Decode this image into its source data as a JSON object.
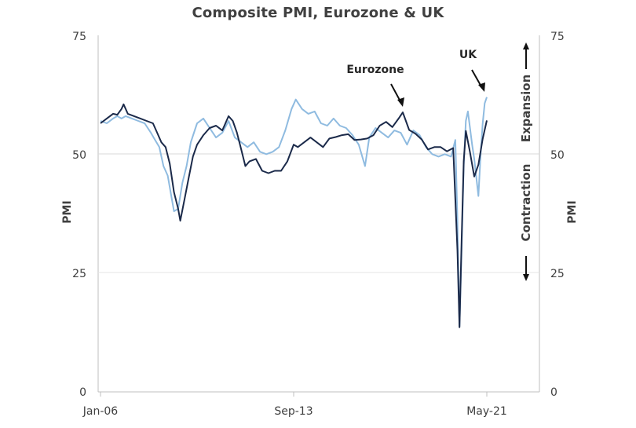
{
  "chart_data": {
    "type": "line",
    "title": "Composite PMI, Eurozone & UK",
    "ylabel_left": "PMI",
    "ylabel_right": "PMI",
    "ylim": [
      0,
      75
    ],
    "yticks": [
      0,
      25,
      50,
      75
    ],
    "x_tick_labels": [
      "Jan-06",
      "Sep-13",
      "May-21"
    ],
    "x_tick_dates": [
      "2006-01",
      "2013-09",
      "2021-05"
    ],
    "xlim": [
      "2006-01",
      "2023-02"
    ],
    "grid": "horizontal line at 50",
    "annotations": {
      "eurozone_label": "Eurozone",
      "uk_label": "UK",
      "expansion": "Expansion",
      "contraction": "Contraction"
    },
    "colors": {
      "eurozone": "#1b2a4a",
      "uk": "#8fbbe0",
      "axis": "#bfbfbf",
      "grid": "#d9d9d9"
    },
    "series": [
      {
        "name": "Eurozone",
        "points": [
          [
            "2006-01",
            56.5
          ],
          [
            "2006-04",
            57.5
          ],
          [
            "2006-07",
            58.5
          ],
          [
            "2006-09",
            58.3
          ],
          [
            "2006-11",
            59.5
          ],
          [
            "2006-12",
            60.5
          ],
          [
            "2007-02",
            58.5
          ],
          [
            "2007-05",
            58.0
          ],
          [
            "2007-08",
            57.5
          ],
          [
            "2007-11",
            57.0
          ],
          [
            "2008-02",
            56.5
          ],
          [
            "2008-04",
            54.5
          ],
          [
            "2008-06",
            52.5
          ],
          [
            "2008-08",
            51.5
          ],
          [
            "2008-10",
            48.0
          ],
          [
            "2008-12",
            42.0
          ],
          [
            "2009-02",
            38.5
          ],
          [
            "2009-03",
            36.0
          ],
          [
            "2009-05",
            40.5
          ],
          [
            "2009-07",
            45.0
          ],
          [
            "2009-09",
            49.5
          ],
          [
            "2009-11",
            52.0
          ],
          [
            "2010-02",
            54.0
          ],
          [
            "2010-05",
            55.5
          ],
          [
            "2010-08",
            56.0
          ],
          [
            "2010-11",
            55.0
          ],
          [
            "2011-02",
            58.0
          ],
          [
            "2011-04",
            57.0
          ],
          [
            "2011-06",
            54.5
          ],
          [
            "2011-08",
            51.0
          ],
          [
            "2011-10",
            47.5
          ],
          [
            "2011-12",
            48.5
          ],
          [
            "2012-03",
            49.0
          ],
          [
            "2012-06",
            46.5
          ],
          [
            "2012-09",
            46.0
          ],
          [
            "2012-12",
            46.5
          ],
          [
            "2013-03",
            46.5
          ],
          [
            "2013-06",
            48.5
          ],
          [
            "2013-09",
            52.0
          ],
          [
            "2013-11",
            51.5
          ],
          [
            "2014-02",
            52.5
          ],
          [
            "2014-05",
            53.5
          ],
          [
            "2014-08",
            52.5
          ],
          [
            "2014-11",
            51.5
          ],
          [
            "2015-02",
            53.3
          ],
          [
            "2015-05",
            53.6
          ],
          [
            "2015-08",
            54.0
          ],
          [
            "2015-11",
            54.2
          ],
          [
            "2016-02",
            53.0
          ],
          [
            "2016-05",
            53.1
          ],
          [
            "2016-08",
            53.3
          ],
          [
            "2016-11",
            54.0
          ],
          [
            "2017-02",
            56.0
          ],
          [
            "2017-05",
            56.8
          ],
          [
            "2017-08",
            55.7
          ],
          [
            "2017-11",
            57.5
          ],
          [
            "2018-01",
            58.8
          ],
          [
            "2018-04",
            55.1
          ],
          [
            "2018-07",
            54.3
          ],
          [
            "2018-10",
            53.1
          ],
          [
            "2019-01",
            51.0
          ],
          [
            "2019-04",
            51.5
          ],
          [
            "2019-07",
            51.5
          ],
          [
            "2019-10",
            50.6
          ],
          [
            "2020-01",
            51.3
          ],
          [
            "2020-03",
            29.7
          ],
          [
            "2020-04",
            13.6
          ],
          [
            "2020-05",
            31.9
          ],
          [
            "2020-06",
            48.5
          ],
          [
            "2020-07",
            54.9
          ],
          [
            "2020-09",
            50.4
          ],
          [
            "2020-11",
            45.3
          ],
          [
            "2021-01",
            47.8
          ],
          [
            "2021-03",
            53.2
          ],
          [
            "2021-05",
            57.1
          ]
        ]
      },
      {
        "name": "UK",
        "points": [
          [
            "2006-01",
            57.0
          ],
          [
            "2006-04",
            56.5
          ],
          [
            "2006-07",
            57.5
          ],
          [
            "2006-09",
            58.0
          ],
          [
            "2006-11",
            57.5
          ],
          [
            "2007-01",
            58.0
          ],
          [
            "2007-04",
            57.5
          ],
          [
            "2007-07",
            57.0
          ],
          [
            "2007-10",
            56.5
          ],
          [
            "2008-01",
            54.5
          ],
          [
            "2008-03",
            53.0
          ],
          [
            "2008-05",
            51.5
          ],
          [
            "2008-07",
            47.5
          ],
          [
            "2008-09",
            45.5
          ],
          [
            "2008-11",
            40.5
          ],
          [
            "2008-12",
            38.0
          ],
          [
            "2009-02",
            38.5
          ],
          [
            "2009-04",
            44.0
          ],
          [
            "2009-06",
            47.5
          ],
          [
            "2009-08",
            52.5
          ],
          [
            "2009-11",
            56.5
          ],
          [
            "2010-02",
            57.5
          ],
          [
            "2010-05",
            55.5
          ],
          [
            "2010-08",
            53.5
          ],
          [
            "2010-11",
            54.5
          ],
          [
            "2011-02",
            57.0
          ],
          [
            "2011-05",
            53.5
          ],
          [
            "2011-08",
            52.5
          ],
          [
            "2011-11",
            51.5
          ],
          [
            "2012-02",
            52.5
          ],
          [
            "2012-05",
            50.5
          ],
          [
            "2012-08",
            50.0
          ],
          [
            "2012-11",
            50.5
          ],
          [
            "2013-02",
            51.5
          ],
          [
            "2013-05",
            55.0
          ],
          [
            "2013-08",
            59.5
          ],
          [
            "2013-10",
            61.5
          ],
          [
            "2014-01",
            59.5
          ],
          [
            "2014-04",
            58.5
          ],
          [
            "2014-07",
            59.0
          ],
          [
            "2014-10",
            56.5
          ],
          [
            "2015-01",
            56.0
          ],
          [
            "2015-04",
            57.5
          ],
          [
            "2015-07",
            56.0
          ],
          [
            "2015-10",
            55.5
          ],
          [
            "2016-01",
            54.0
          ],
          [
            "2016-04",
            52.0
          ],
          [
            "2016-07",
            47.5
          ],
          [
            "2016-09",
            53.5
          ],
          [
            "2016-12",
            55.5
          ],
          [
            "2017-03",
            54.5
          ],
          [
            "2017-06",
            53.5
          ],
          [
            "2017-09",
            55.0
          ],
          [
            "2017-12",
            54.5
          ],
          [
            "2018-03",
            52.0
          ],
          [
            "2018-06",
            55.0
          ],
          [
            "2018-09",
            54.0
          ],
          [
            "2018-12",
            51.5
          ],
          [
            "2019-03",
            50.0
          ],
          [
            "2019-06",
            49.5
          ],
          [
            "2019-09",
            50.0
          ],
          [
            "2019-12",
            49.5
          ],
          [
            "2020-02",
            53.0
          ],
          [
            "2020-03",
            36.0
          ],
          [
            "2020-04",
            13.8
          ],
          [
            "2020-05",
            30.0
          ],
          [
            "2020-06",
            47.7
          ],
          [
            "2020-07",
            57.0
          ],
          [
            "2020-08",
            59.0
          ],
          [
            "2020-10",
            52.0
          ],
          [
            "2020-11",
            49.0
          ],
          [
            "2021-01",
            41.2
          ],
          [
            "2021-02",
            49.6
          ],
          [
            "2021-03",
            56.4
          ],
          [
            "2021-04",
            60.7
          ],
          [
            "2021-05",
            62.0
          ]
        ]
      }
    ]
  }
}
